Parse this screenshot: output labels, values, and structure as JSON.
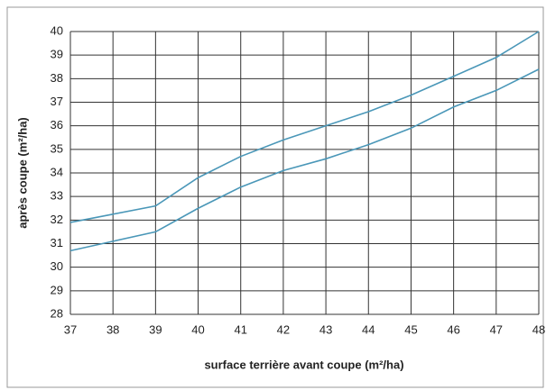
{
  "chart_data": {
    "type": "line",
    "x": [
      37,
      38,
      39,
      40,
      41,
      42,
      43,
      44,
      45,
      46,
      47,
      48
    ],
    "series": [
      {
        "color": "#4a97b8",
        "values": [
          31.9,
          32.25,
          32.6,
          33.8,
          34.7,
          35.4,
          36.0,
          36.6,
          37.3,
          38.1,
          38.9,
          40.0
        ]
      },
      {
        "color": "#4a97b8",
        "values": [
          30.7,
          31.1,
          31.5,
          32.5,
          33.4,
          34.1,
          34.6,
          35.2,
          35.9,
          36.8,
          37.5,
          38.4
        ]
      }
    ],
    "xlim": [
      37,
      48
    ],
    "xticks": [
      37,
      38,
      39,
      40,
      41,
      42,
      43,
      44,
      45,
      46,
      47,
      48
    ],
    "ylim": [
      28,
      40
    ],
    "yticks": [
      28,
      29,
      30,
      31,
      32,
      33,
      34,
      35,
      36,
      37,
      38,
      39,
      40
    ],
    "xlabel": "surface terrière avant coupe (m²/ha)",
    "ylabel": "après coupe (m²/ha)",
    "grid": true
  }
}
